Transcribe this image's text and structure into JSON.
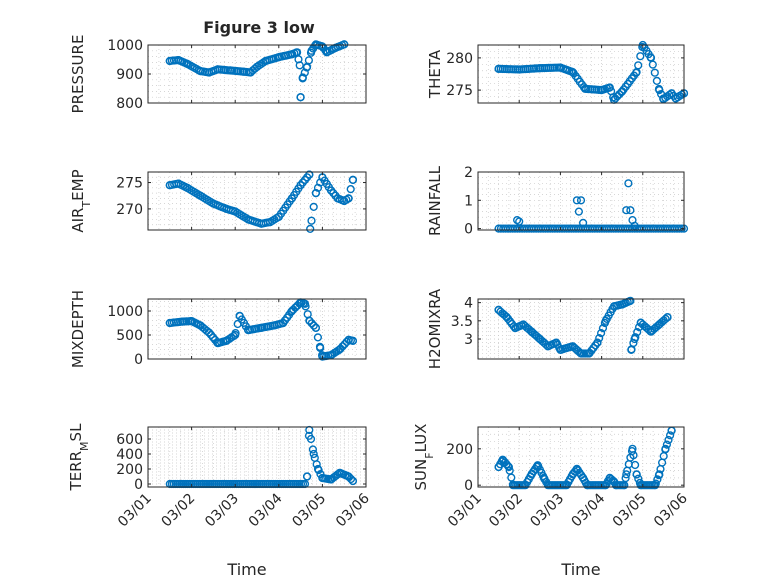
{
  "figure_title": "Figure 3 low",
  "colors": {
    "marker": "#0072BD",
    "axis": "#262626",
    "grid": "#c8c8c8",
    "background": "#ffffff"
  },
  "chart_data": [
    {
      "id": "pressure",
      "type": "scatter",
      "title": "Figure 3 low",
      "ylabel": [
        "PRESSURE"
      ],
      "xlabel": "",
      "xlim": [
        0,
        5
      ],
      "ylim": [
        800,
        1000
      ],
      "yticks": [
        800,
        900,
        1000
      ],
      "xtick_labels": [
        "03/01",
        "03/02",
        "03/03",
        "03/04",
        "03/05",
        "03/06"
      ],
      "show_xtick_labels": false,
      "grid": true,
      "series": [
        {
          "name": "PRESSURE",
          "anchors": [
            [
              0.5,
              945
            ],
            [
              0.7,
              948
            ],
            [
              0.9,
              935
            ],
            [
              1.2,
              910
            ],
            [
              1.4,
              905
            ],
            [
              1.6,
              916
            ],
            [
              1.9,
              912
            ],
            [
              2.2,
              908
            ],
            [
              2.35,
              905
            ],
            [
              2.5,
              925
            ],
            [
              2.7,
              945
            ],
            [
              3.0,
              958
            ],
            [
              3.3,
              968
            ],
            [
              3.42,
              975
            ],
            [
              3.48,
              930
            ],
            [
              3.5,
              820
            ],
            [
              3.55,
              888
            ],
            [
              3.65,
              925
            ],
            [
              3.75,
              980
            ],
            [
              3.85,
              1002
            ],
            [
              4.0,
              995
            ],
            [
              4.1,
              975
            ],
            [
              4.3,
              990
            ],
            [
              4.5,
              1002
            ]
          ],
          "points": 85
        }
      ]
    },
    {
      "id": "theta",
      "type": "scatter",
      "ylabel": [
        "THETA"
      ],
      "xlabel": "",
      "xlim": [
        0,
        5
      ],
      "ylim": [
        273,
        282
      ],
      "yticks": [
        275,
        280
      ],
      "xtick_labels": [
        "03/01",
        "03/02",
        "03/03",
        "03/04",
        "03/05",
        "03/06"
      ],
      "show_xtick_labels": false,
      "grid": true,
      "series": [
        {
          "name": "THETA",
          "anchors": [
            [
              0.5,
              278.3
            ],
            [
              1.0,
              278.2
            ],
            [
              1.5,
              278.4
            ],
            [
              2.0,
              278.5
            ],
            [
              2.3,
              277.8
            ],
            [
              2.6,
              275.2
            ],
            [
              3.0,
              275.0
            ],
            [
              3.2,
              275.4
            ],
            [
              3.3,
              273.5
            ],
            [
              3.5,
              274.8
            ],
            [
              3.85,
              277.8
            ],
            [
              4.0,
              282.0
            ],
            [
              4.2,
              280.0
            ],
            [
              4.4,
              275.0
            ],
            [
              4.5,
              273.6
            ],
            [
              4.7,
              274.5
            ],
            [
              4.8,
              273.7
            ],
            [
              5.0,
              274.5
            ]
          ],
          "points": 90
        }
      ]
    },
    {
      "id": "air_temp",
      "type": "scatter",
      "ylabel": [
        "AIR",
        "T",
        "EMP"
      ],
      "xlabel": "",
      "xlim": [
        0,
        5
      ],
      "ylim": [
        266,
        277
      ],
      "yticks": [
        270,
        275
      ],
      "xtick_labels": [
        "03/01",
        "03/02",
        "03/03",
        "03/04",
        "03/05",
        "03/06"
      ],
      "show_xtick_labels": false,
      "grid": true,
      "series": [
        {
          "name": "AIR_TEMP",
          "anchors": [
            [
              0.5,
              274.5
            ],
            [
              0.7,
              274.8
            ],
            [
              0.9,
              274.0
            ],
            [
              1.2,
              272.5
            ],
            [
              1.5,
              271.0
            ],
            [
              1.8,
              270.0
            ],
            [
              2.0,
              269.5
            ],
            [
              2.3,
              268.0
            ],
            [
              2.6,
              267.2
            ],
            [
              2.8,
              267.5
            ],
            [
              3.0,
              268.5
            ],
            [
              3.3,
              272.0
            ],
            [
              3.5,
              274.5
            ],
            [
              3.7,
              276.5
            ],
            [
              3.72,
              266.2
            ],
            [
              3.85,
              273.0
            ],
            [
              4.0,
              276.0
            ],
            [
              4.2,
              273.5
            ],
            [
              4.35,
              272.0
            ],
            [
              4.5,
              271.5
            ],
            [
              4.6,
              272.0
            ],
            [
              4.7,
              275.5
            ]
          ],
          "points": 85
        }
      ]
    },
    {
      "id": "rainfall",
      "type": "scatter",
      "ylabel": [
        "RAINFALL"
      ],
      "xlabel": "",
      "xlim": [
        0,
        5
      ],
      "ylim": [
        -0.05,
        2
      ],
      "yticks": [
        0,
        1,
        2
      ],
      "xtick_labels": [
        "03/01",
        "03/02",
        "03/03",
        "03/04",
        "03/05",
        "03/06"
      ],
      "show_xtick_labels": false,
      "grid": true,
      "series": [
        {
          "name": "RAINFALL",
          "baseline": 0,
          "baseline_range": [
            0.5,
            5.0
          ],
          "baseline_points": 80,
          "spikes": [
            [
              0.95,
              0.3
            ],
            [
              1.0,
              0.25
            ],
            [
              2.4,
              1.0
            ],
            [
              2.45,
              0.6
            ],
            [
              2.5,
              1.0
            ],
            [
              2.55,
              0.2
            ],
            [
              3.6,
              0.65
            ],
            [
              3.65,
              1.6
            ],
            [
              3.7,
              0.65
            ],
            [
              3.75,
              0.3
            ],
            [
              3.8,
              0.1
            ]
          ]
        }
      ]
    },
    {
      "id": "mixdepth",
      "type": "scatter",
      "ylabel": [
        "MIXDEPTH"
      ],
      "xlabel": "",
      "xlim": [
        0,
        5
      ],
      "ylim": [
        0,
        1250
      ],
      "yticks": [
        0,
        500,
        1000
      ],
      "xtick_labels": [
        "03/01",
        "03/02",
        "03/03",
        "03/04",
        "03/05",
        "03/06"
      ],
      "show_xtick_labels": false,
      "grid": true,
      "series": [
        {
          "name": "MIXDEPTH",
          "anchors": [
            [
              0.5,
              750
            ],
            [
              0.8,
              780
            ],
            [
              1.0,
              790
            ],
            [
              1.2,
              700
            ],
            [
              1.4,
              550
            ],
            [
              1.6,
              330
            ],
            [
              1.8,
              380
            ],
            [
              2.0,
              500
            ],
            [
              2.1,
              900
            ],
            [
              2.3,
              600
            ],
            [
              2.6,
              650
            ],
            [
              2.9,
              700
            ],
            [
              3.1,
              750
            ],
            [
              3.3,
              1000
            ],
            [
              3.5,
              1180
            ],
            [
              3.6,
              1150
            ],
            [
              3.7,
              800
            ],
            [
              3.85,
              650
            ],
            [
              3.95,
              230
            ],
            [
              4.0,
              50
            ],
            [
              4.2,
              80
            ],
            [
              4.4,
              200
            ],
            [
              4.6,
              400
            ],
            [
              4.7,
              380
            ]
          ],
          "points": 90
        }
      ]
    },
    {
      "id": "h2omixra",
      "type": "scatter",
      "ylabel": [
        "H2OMIXRA"
      ],
      "xlabel": "",
      "xlim": [
        0,
        5
      ],
      "ylim": [
        2.45,
        4.1
      ],
      "yticks": [
        3,
        3.5,
        4
      ],
      "xtick_labels": [
        "03/01",
        "03/02",
        "03/03",
        "03/04",
        "03/05",
        "03/06"
      ],
      "show_xtick_labels": false,
      "grid": true,
      "series": [
        {
          "name": "H2OMIXRA",
          "anchors": [
            [
              0.5,
              3.8
            ],
            [
              0.7,
              3.6
            ],
            [
              0.9,
              3.3
            ],
            [
              1.1,
              3.4
            ],
            [
              1.3,
              3.2
            ],
            [
              1.5,
              3.0
            ],
            [
              1.7,
              2.8
            ],
            [
              1.9,
              2.9
            ],
            [
              2.0,
              2.7
            ],
            [
              2.3,
              2.8
            ],
            [
              2.5,
              2.6
            ],
            [
              2.7,
              2.6
            ],
            [
              2.9,
              2.9
            ],
            [
              3.1,
              3.5
            ],
            [
              3.3,
              3.9
            ],
            [
              3.5,
              3.95
            ],
            [
              3.7,
              4.05
            ],
            [
              3.72,
              2.7
            ],
            [
              3.8,
              3.0
            ],
            [
              3.95,
              3.45
            ],
            [
              4.2,
              3.2
            ],
            [
              4.4,
              3.4
            ],
            [
              4.6,
              3.6
            ]
          ],
          "points": 90
        }
      ]
    },
    {
      "id": "terr_msl",
      "type": "scatter",
      "ylabel": [
        "TERR",
        "M",
        "SL"
      ],
      "xlabel": "Time",
      "xlim": [
        0,
        5
      ],
      "ylim": [
        -40,
        760
      ],
      "yticks": [
        0,
        200,
        400,
        600
      ],
      "xtick_labels": [
        "03/01",
        "03/02",
        "03/03",
        "03/04",
        "03/05",
        "03/06"
      ],
      "show_xtick_labels": true,
      "grid": true,
      "series": [
        {
          "name": "TERR_MSL",
          "baseline": 0,
          "baseline_range": [
            0.5,
            3.6
          ],
          "baseline_points": 70,
          "anchors": [
            [
              3.65,
              100
            ],
            [
              3.7,
              720
            ],
            [
              3.8,
              400
            ],
            [
              3.9,
              200
            ],
            [
              4.0,
              80
            ],
            [
              4.2,
              60
            ],
            [
              4.4,
              150
            ],
            [
              4.6,
              100
            ],
            [
              4.7,
              40
            ]
          ],
          "points": 25
        }
      ]
    },
    {
      "id": "sun_flux",
      "type": "scatter",
      "ylabel": [
        "SUN",
        "F",
        "LUX"
      ],
      "xlabel": "Time",
      "xlim": [
        0,
        5
      ],
      "ylim": [
        -10,
        320
      ],
      "yticks": [
        0,
        200
      ],
      "xtick_labels": [
        "03/01",
        "03/02",
        "03/03",
        "03/04",
        "03/05",
        "03/06"
      ],
      "show_xtick_labels": true,
      "grid": true,
      "series": [
        {
          "name": "SUN_FLUX",
          "anchors": [
            [
              0.5,
              100
            ],
            [
              0.6,
              140
            ],
            [
              0.75,
              100
            ],
            [
              0.85,
              0
            ],
            [
              1.15,
              0
            ],
            [
              1.3,
              60
            ],
            [
              1.45,
              110
            ],
            [
              1.6,
              40
            ],
            [
              1.7,
              0
            ],
            [
              2.15,
              0
            ],
            [
              2.3,
              60
            ],
            [
              2.4,
              90
            ],
            [
              2.55,
              40
            ],
            [
              2.65,
              0
            ],
            [
              3.1,
              0
            ],
            [
              3.2,
              40
            ],
            [
              3.3,
              20
            ],
            [
              3.35,
              0
            ],
            [
              3.55,
              0
            ],
            [
              3.6,
              60
            ],
            [
              3.75,
              200
            ],
            [
              3.85,
              60
            ],
            [
              3.95,
              0
            ],
            [
              4.3,
              0
            ],
            [
              4.4,
              60
            ],
            [
              4.55,
              200
            ],
            [
              4.7,
              300
            ]
          ],
          "points": 110
        }
      ]
    }
  ]
}
